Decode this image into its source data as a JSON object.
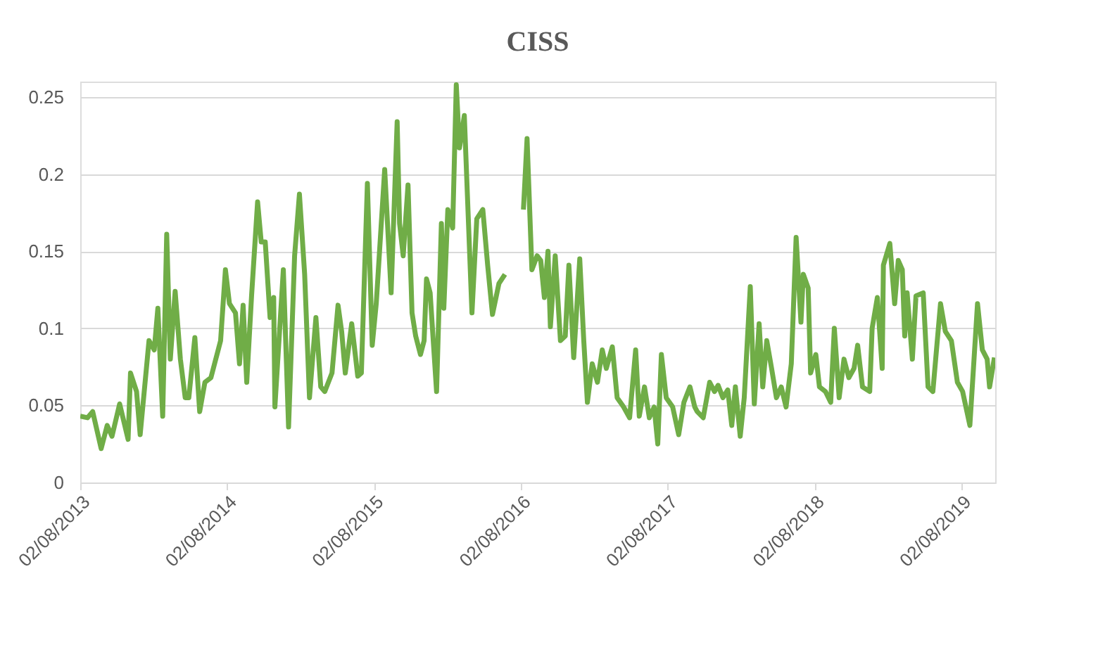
{
  "chart_data": {
    "type": "line",
    "title": "CISS",
    "xlim": [
      "2013-08-02",
      "2019-10-25"
    ],
    "xticks": [
      {
        "value": "2013-08-02",
        "label": "02/08/2013"
      },
      {
        "value": "2014-08-02",
        "label": "02/08/2014"
      },
      {
        "value": "2015-08-02",
        "label": "02/08/2015"
      },
      {
        "value": "2016-08-02",
        "label": "02/08/2016"
      },
      {
        "value": "2017-08-02",
        "label": "02/08/2017"
      },
      {
        "value": "2018-08-02",
        "label": "02/08/2018"
      },
      {
        "value": "2019-08-02",
        "label": "02/08/2019"
      }
    ],
    "ylim": [
      0,
      0.26
    ],
    "yticks": [
      0,
      0.05,
      0.1,
      0.15,
      0.2,
      0.25
    ],
    "grid": "y",
    "marker": "none",
    "line_style": "solid",
    "x": [
      "2013-08-02",
      "2013-08-20",
      "2013-09-02",
      "2013-09-23",
      "2013-10-08",
      "2013-10-20",
      "2013-11-08",
      "2013-11-29",
      "2013-12-05",
      "2013-12-20",
      "2013-12-29",
      "2014-01-20",
      "2014-02-02",
      "2014-02-11",
      "2014-02-23",
      "2014-03-05",
      "2014-03-14",
      "2014-03-26",
      "2014-04-08",
      "2014-04-20",
      "2014-04-29",
      "2014-05-14",
      "2014-05-26",
      "2014-06-08",
      "2014-06-23",
      "2014-07-08",
      "2014-07-17",
      "2014-07-29",
      "2014-08-08",
      "2014-08-23",
      "2014-09-02",
      "2014-09-11",
      "2014-09-20",
      "2014-10-02",
      "2014-10-17",
      "2014-10-26",
      "2014-11-05",
      "2014-11-17",
      "2014-11-26",
      "2014-11-29",
      "2014-12-20",
      "2015-01-02",
      "2015-01-17",
      "2015-01-29",
      "2015-02-11",
      "2015-02-23",
      "2015-03-11",
      "2015-03-23",
      "2015-04-02",
      "2015-04-20",
      "2015-05-05",
      "2015-05-14",
      "2015-05-23",
      "2015-06-08",
      "2015-06-23",
      "2015-07-02",
      "2015-07-17",
      "2015-07-29",
      "2015-08-08",
      "2015-08-29",
      "2015-09-14",
      "2015-09-29",
      "2015-10-05",
      "2015-10-14",
      "2015-10-26",
      "2015-11-05",
      "2015-11-14",
      "2015-11-26",
      "2015-12-05",
      "2015-12-11",
      "2015-12-20",
      "2016-01-05",
      "2016-01-17",
      "2016-01-23",
      "2016-02-02",
      "2016-02-14",
      "2016-02-23",
      "2016-03-02",
      "2016-03-14",
      "2016-04-02",
      "2016-04-14",
      "2016-04-29",
      "2016-05-11",
      "2016-05-23",
      "2016-06-08",
      "2016-06-23",
      "2016-06-29",
      "2016-07-11",
      "2016-07-29",
      "2016-08-08",
      "2016-08-17",
      "2016-08-29",
      "2016-09-11",
      "2016-09-20",
      "2016-09-29",
      "2016-10-08",
      "2016-10-14",
      "2016-10-26",
      "2016-11-08",
      "2016-11-20",
      "2016-11-29",
      "2016-12-11",
      "2016-12-26",
      "2017-01-05",
      "2017-01-14",
      "2017-01-26",
      "2017-02-08",
      "2017-02-20",
      "2017-03-02",
      "2017-03-17",
      "2017-03-29",
      "2017-04-14",
      "2017-04-29",
      "2017-05-14",
      "2017-05-23",
      "2017-06-05",
      "2017-06-17",
      "2017-06-29",
      "2017-07-08",
      "2017-07-17",
      "2017-07-29",
      "2017-08-14",
      "2017-08-29",
      "2017-09-11",
      "2017-09-26",
      "2017-10-08",
      "2017-10-14",
      "2017-10-29",
      "2017-11-14",
      "2017-11-26",
      "2017-12-05",
      "2017-12-17",
      "2017-12-29",
      "2018-01-08",
      "2018-01-17",
      "2018-01-29",
      "2018-02-08",
      "2018-02-23",
      "2018-03-05",
      "2018-03-17",
      "2018-03-26",
      "2018-04-05",
      "2018-04-17",
      "2018-04-29",
      "2018-05-11",
      "2018-05-23",
      "2018-06-05",
      "2018-06-17",
      "2018-06-29",
      "2018-07-05",
      "2018-07-17",
      "2018-07-23",
      "2018-08-05",
      "2018-08-14",
      "2018-08-29",
      "2018-09-11",
      "2018-09-20",
      "2018-10-02",
      "2018-10-14",
      "2018-10-26",
      "2018-11-08",
      "2018-11-17",
      "2018-11-29",
      "2018-12-17",
      "2018-12-23",
      "2019-01-05",
      "2019-01-17",
      "2019-01-20",
      "2019-02-05",
      "2019-02-17",
      "2019-02-26",
      "2019-03-08",
      "2019-03-14",
      "2019-03-20",
      "2019-04-02",
      "2019-04-11",
      "2019-04-29",
      "2019-05-11",
      "2019-05-23",
      "2019-06-11",
      "2019-06-23",
      "2019-07-08",
      "2019-07-23",
      "2019-08-05",
      "2019-08-23",
      "2019-09-11",
      "2019-09-23",
      "2019-10-05",
      "2019-10-11",
      "2019-10-23"
    ],
    "series": [
      {
        "color": "#70ad47",
        "values": [
          0.043,
          0.042,
          0.046,
          0.022,
          0.037,
          0.03,
          0.051,
          0.028,
          0.071,
          0.059,
          0.031,
          0.092,
          0.086,
          0.113,
          0.043,
          0.161,
          0.08,
          0.124,
          0.08,
          0.055,
          0.055,
          0.094,
          0.046,
          0.065,
          0.068,
          0.083,
          0.092,
          0.138,
          0.116,
          0.11,
          0.077,
          0.115,
          0.065,
          0.121,
          0.182,
          0.156,
          0.156,
          0.107,
          0.12,
          0.049,
          0.138,
          0.036,
          0.147,
          0.187,
          0.135,
          0.055,
          0.107,
          0.062,
          0.059,
          0.071,
          0.115,
          0.098,
          0.071,
          0.103,
          0.069,
          0.071,
          0.194,
          0.089,
          0.116,
          0.203,
          0.123,
          0.234,
          0.168,
          0.147,
          0.193,
          0.11,
          0.095,
          0.083,
          0.092,
          0.132,
          0.123,
          0.059,
          0.168,
          0.113,
          0.177,
          0.165,
          0.258,
          0.217,
          0.238,
          0.11,
          0.171,
          0.177,
          0.141,
          0.109,
          0.129,
          0.135,
          null,
          null,
          null,
          0.177,
          0.223,
          0.138,
          0.147,
          0.144,
          0.12,
          0.15,
          0.101,
          0.147,
          0.092,
          0.095,
          0.141,
          0.081,
          0.145,
          0.092,
          0.052,
          0.077,
          0.065,
          0.086,
          0.074,
          0.088,
          0.055,
          0.049,
          0.042,
          0.086,
          0.043,
          0.062,
          0.042,
          0.049,
          0.025,
          0.083,
          0.055,
          0.049,
          0.031,
          0.052,
          0.062,
          0.049,
          0.046,
          0.042,
          0.065,
          0.059,
          0.063,
          0.055,
          0.06,
          0.037,
          0.062,
          0.03,
          0.055,
          0.127,
          0.051,
          0.103,
          0.062,
          0.092,
          0.074,
          0.055,
          0.062,
          0.049,
          0.077,
          0.159,
          0.104,
          0.135,
          0.126,
          0.071,
          0.083,
          0.062,
          0.059,
          0.052,
          0.1,
          0.055,
          0.08,
          0.068,
          0.074,
          0.089,
          0.062,
          0.059,
          0.1,
          0.12,
          0.074,
          0.141,
          0.155,
          0.116,
          0.144,
          0.138,
          0.095,
          0.123,
          0.08,
          0.121,
          0.123,
          0.062,
          0.059,
          0.116,
          0.098,
          0.092,
          0.065,
          0.059,
          0.037,
          0.116,
          0.086,
          0.08,
          0.062,
          0.081
        ]
      }
    ]
  }
}
